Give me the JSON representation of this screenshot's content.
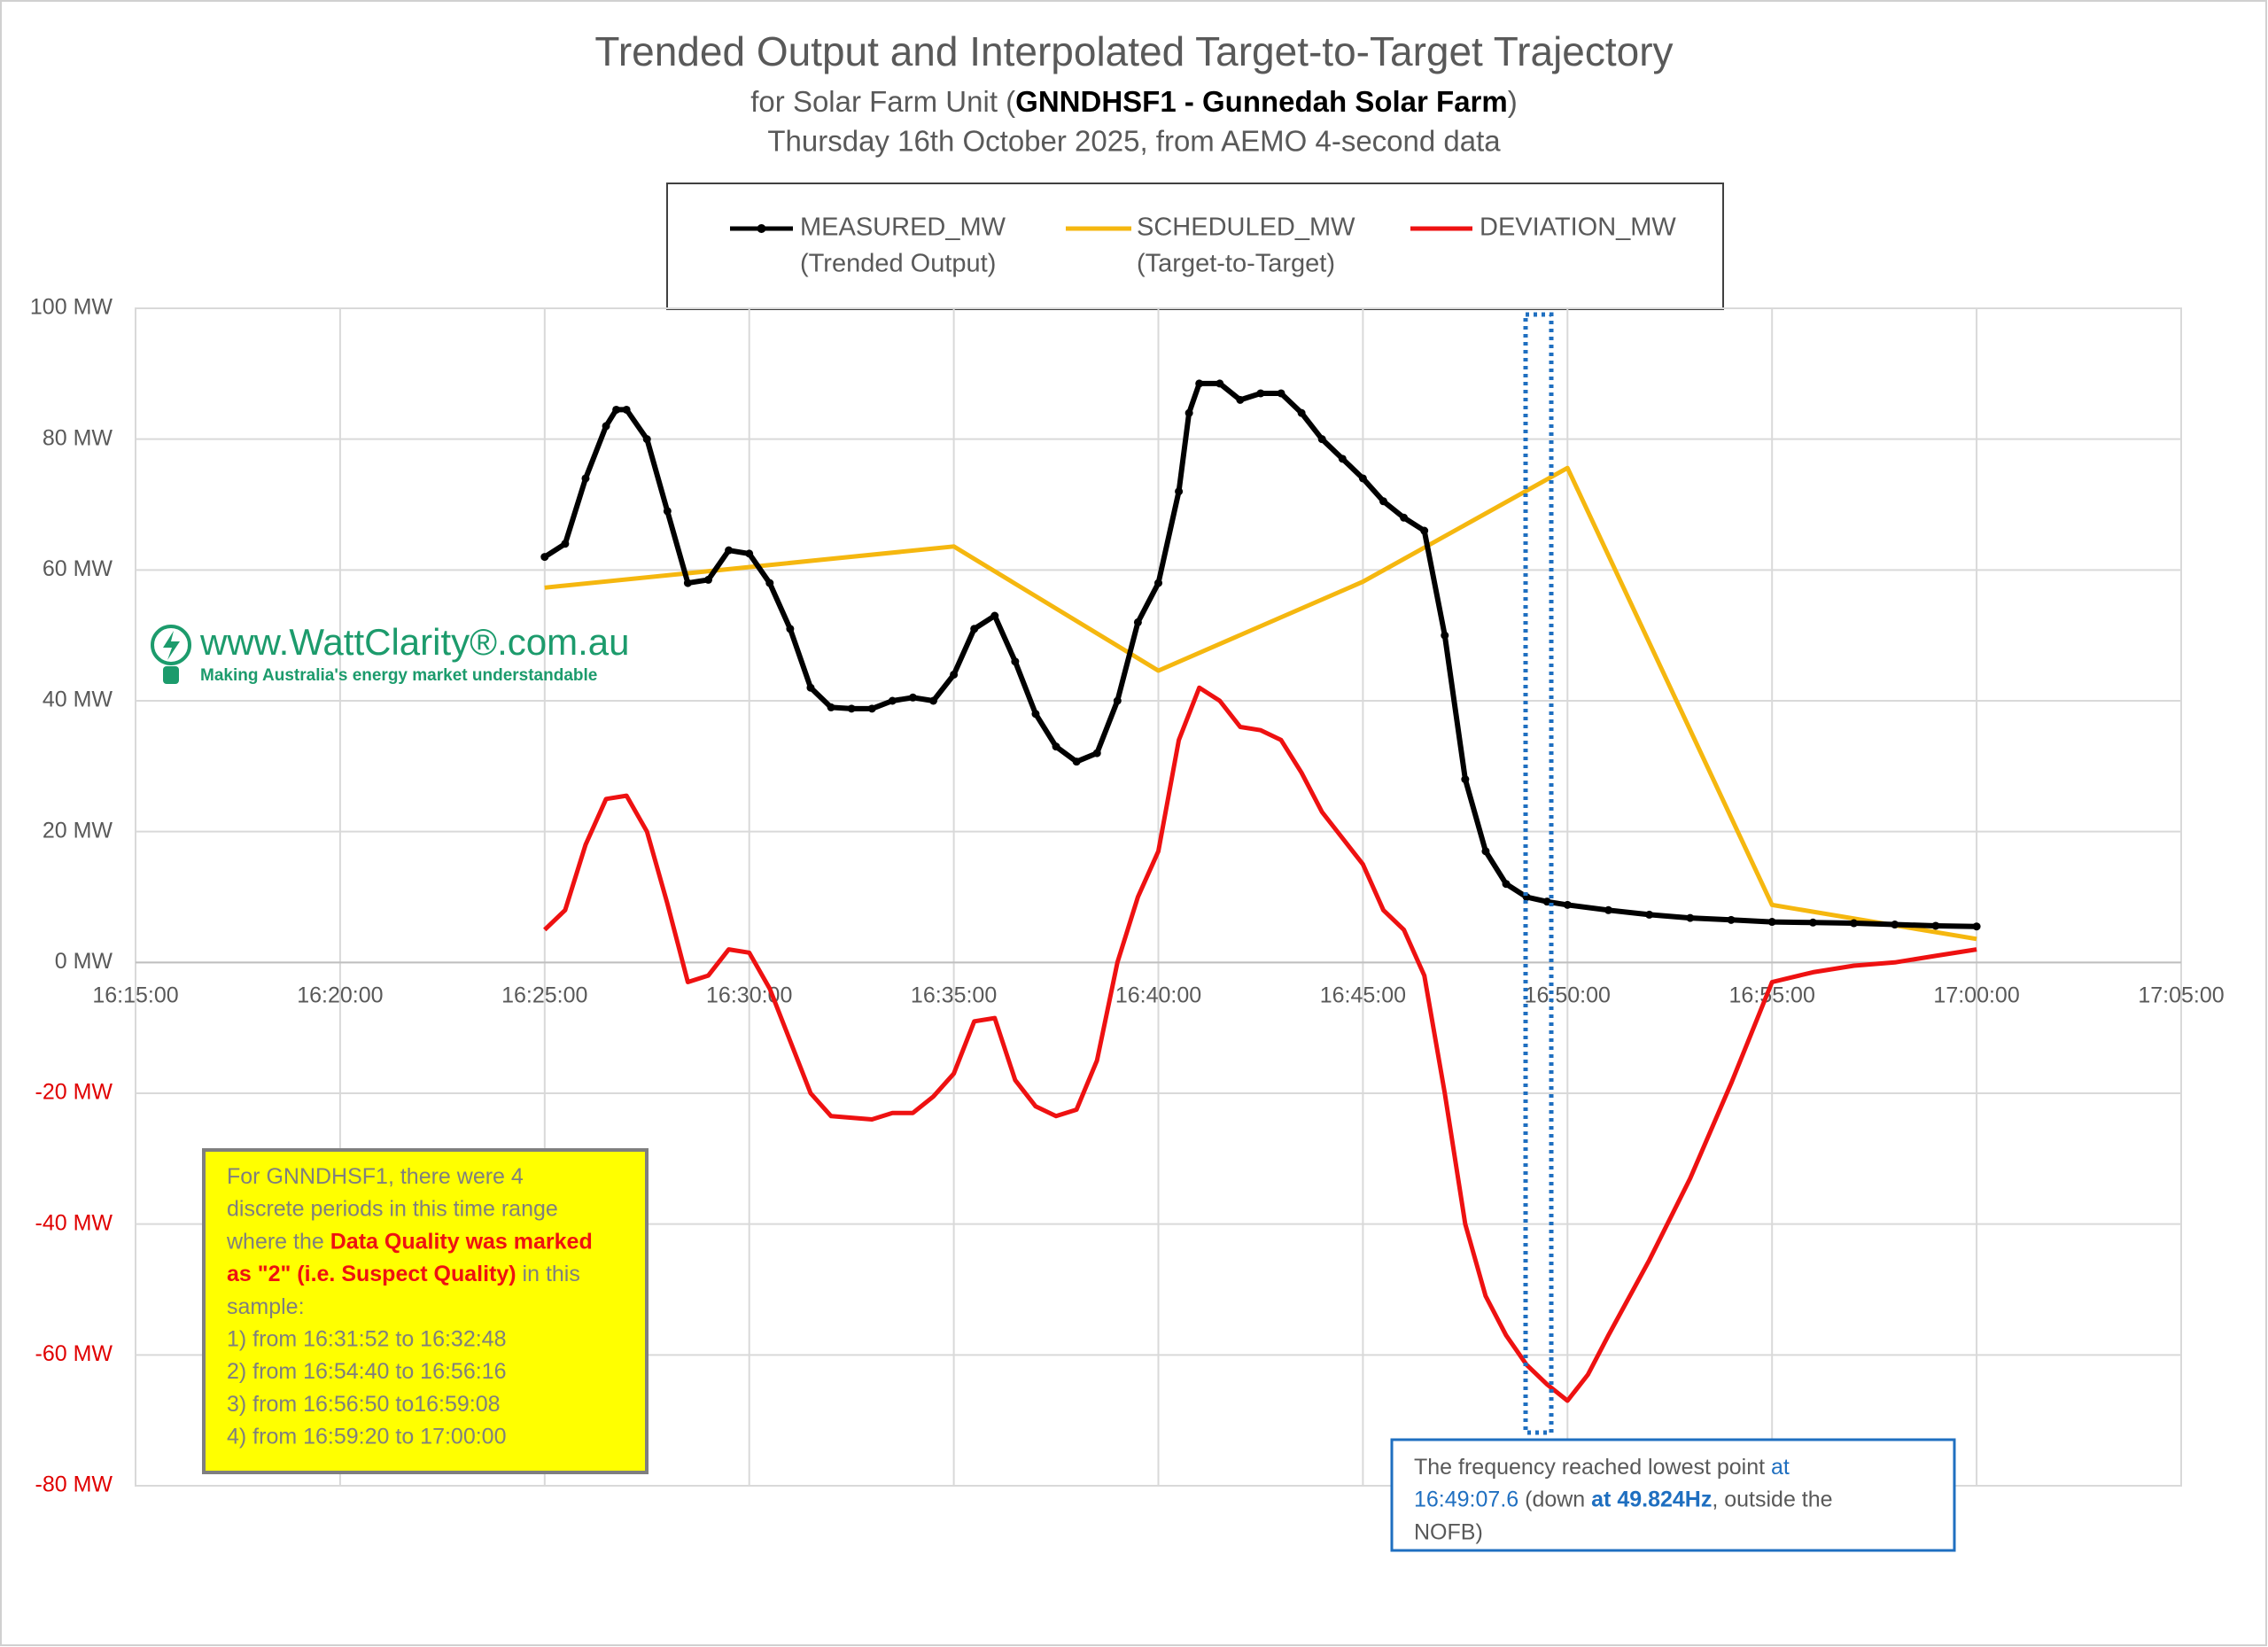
{
  "chart_data": {
    "type": "line",
    "title": "Trended Output and Interpolated Target-to-Target Trajectory",
    "subtitle": {
      "prefix": "for Solar Farm Unit (",
      "bold": "GNNDHSF1 - Gunnedah Solar Farm",
      "suffix": ")"
    },
    "subtitle2": "Thursday 16th October 2025, from AEMO 4-second data",
    "xlim": [
      "16:15:00",
      "17:05:00"
    ],
    "xticks": [
      "16:15:00",
      "16:20:00",
      "16:25:00",
      "16:30:00",
      "16:35:00",
      "16:40:00",
      "16:45:00",
      "16:50:00",
      "16:55:00",
      "17:00:00",
      "17:05:00"
    ],
    "ylim": [
      -80,
      100
    ],
    "yticks": [
      {
        "value": -80,
        "label": "-80 MW"
      },
      {
        "value": -60,
        "label": "-60 MW"
      },
      {
        "value": -40,
        "label": "-40 MW"
      },
      {
        "value": -20,
        "label": "-20 MW"
      },
      {
        "value": 0,
        "label": "0 MW"
      },
      {
        "value": 20,
        "label": "20 MW"
      },
      {
        "value": 40,
        "label": "40 MW"
      },
      {
        "value": 60,
        "label": "60 MW"
      },
      {
        "value": 80,
        "label": "80 MW"
      },
      {
        "value": 100,
        "label": "100 MW"
      }
    ],
    "negative_tick_color": "#e00000",
    "grid": true,
    "legend": "top",
    "series": [
      {
        "name": "MEASURED_MW",
        "description": "(Trended Output)",
        "color": "#000000",
        "markers": true,
        "x": [
          "16:25:00",
          "16:25:30",
          "16:26:00",
          "16:26:30",
          "16:26:45",
          "16:27:00",
          "16:27:30",
          "16:28:00",
          "16:28:30",
          "16:29:00",
          "16:29:30",
          "16:30:00",
          "16:30:30",
          "16:31:00",
          "16:31:30",
          "16:32:00",
          "16:32:30",
          "16:33:00",
          "16:33:30",
          "16:34:00",
          "16:34:30",
          "16:35:00",
          "16:35:30",
          "16:36:00",
          "16:36:30",
          "16:37:00",
          "16:37:30",
          "16:38:00",
          "16:38:30",
          "16:39:00",
          "16:39:30",
          "16:40:00",
          "16:40:30",
          "16:40:45",
          "16:41:00",
          "16:41:30",
          "16:42:00",
          "16:42:30",
          "16:43:00",
          "16:43:30",
          "16:44:00",
          "16:44:30",
          "16:45:00",
          "16:45:30",
          "16:46:00",
          "16:46:30",
          "16:47:00",
          "16:47:30",
          "16:48:00",
          "16:48:30",
          "16:49:00",
          "16:49:30",
          "16:50:00",
          "16:51:00",
          "16:52:00",
          "16:53:00",
          "16:54:00",
          "16:55:00",
          "16:56:00",
          "16:57:00",
          "16:58:00",
          "16:59:00",
          "17:00:00"
        ],
        "values": [
          62,
          64,
          74,
          82,
          84.5,
          84.5,
          80,
          69,
          58,
          58.5,
          63,
          62.5,
          58,
          51,
          42,
          39,
          38.8,
          38.8,
          40,
          40.5,
          40,
          44,
          51,
          53,
          46,
          38,
          33,
          30.7,
          32,
          40,
          52,
          58,
          72,
          84,
          88.5,
          88.5,
          86,
          87,
          87,
          84,
          80,
          77,
          74,
          70.5,
          68,
          66,
          50,
          28,
          17,
          12,
          10,
          9.3,
          8.8,
          8,
          7.3,
          6.8,
          6.5,
          6.2,
          6.1,
          6,
          5.8,
          5.6,
          5.5
        ]
      },
      {
        "name": "SCHEDULED_MW",
        "description": "(Target-to-Target)",
        "color": "#f5b70f",
        "markers": false,
        "x": [
          "16:25:00",
          "16:35:00",
          "16:40:00",
          "16:45:00",
          "16:50:00",
          "16:55:00",
          "17:00:00"
        ],
        "values": [
          57.3,
          63.6,
          44.6,
          58.2,
          75.6,
          8.8,
          3.6
        ]
      },
      {
        "name": "DEVIATION_MW",
        "color": "#ee1111",
        "markers": false,
        "x": [
          "16:25:00",
          "16:25:30",
          "16:26:00",
          "16:26:30",
          "16:27:00",
          "16:27:30",
          "16:28:00",
          "16:28:30",
          "16:29:00",
          "16:29:30",
          "16:30:00",
          "16:30:30",
          "16:31:00",
          "16:31:30",
          "16:32:00",
          "16:33:00",
          "16:33:30",
          "16:34:00",
          "16:34:30",
          "16:35:00",
          "16:35:30",
          "16:36:00",
          "16:36:30",
          "16:37:00",
          "16:37:30",
          "16:38:00",
          "16:38:30",
          "16:39:00",
          "16:39:30",
          "16:40:00",
          "16:40:30",
          "16:41:00",
          "16:41:30",
          "16:42:00",
          "16:42:30",
          "16:43:00",
          "16:43:30",
          "16:44:00",
          "16:44:30",
          "16:45:00",
          "16:45:30",
          "16:46:00",
          "16:46:30",
          "16:47:00",
          "16:47:30",
          "16:48:00",
          "16:48:30",
          "16:49:00",
          "16:49:30",
          "16:50:00",
          "16:50:30",
          "16:51:00",
          "16:52:00",
          "16:53:00",
          "16:54:00",
          "16:55:00",
          "16:56:00",
          "16:57:00",
          "16:58:00",
          "16:59:00",
          "17:00:00"
        ],
        "values": [
          5,
          8,
          18,
          25,
          25.5,
          20,
          9,
          -3,
          -2,
          2,
          1.5,
          -4,
          -12,
          -20,
          -23.5,
          -24,
          -23,
          -23,
          -20.5,
          -17,
          -9,
          -8.5,
          -18,
          -22,
          -23.5,
          -22.5,
          -15,
          0,
          10,
          17,
          34,
          42,
          40,
          36,
          35.5,
          34,
          29,
          23,
          19,
          15,
          8,
          5,
          -2,
          -20,
          -40,
          -51,
          -57,
          -61.5,
          -64.5,
          -67,
          -63,
          -57,
          -45.5,
          -33,
          -18.5,
          -3,
          -1.5,
          -0.5,
          0,
          1,
          2
        ]
      }
    ],
    "logo": {
      "text": "www.WattClarity®.com.au",
      "tagline": "Making Australia's energy market understandable"
    },
    "note_box": {
      "lines": [
        [
          {
            "text": "For GNNDHSF1, there were 4"
          }
        ],
        [
          {
            "text": "discrete periods in this time range"
          }
        ],
        [
          {
            "text": "where the "
          },
          {
            "text": "Data Quality was marked",
            "emphasis": true
          }
        ],
        [
          {
            "text": "as \"2\" (i.e. Suspect Quality)",
            "emphasis": true
          },
          {
            "text": " in this"
          }
        ],
        [
          {
            "text": "sample:"
          }
        ],
        [
          {
            "text": "1) from 16:31:52 to 16:32:48"
          }
        ],
        [
          {
            "text": "2) from 16:54:40 to 16:56:16"
          }
        ],
        [
          {
            "text": "3) from 16:56:50 to16:59:08"
          }
        ],
        [
          {
            "text": "4) from 16:59:20 to 17:00:00"
          }
        ]
      ]
    },
    "frequency_box": {
      "lines": [
        [
          {
            "text": "The frequency reached lowest point "
          },
          {
            "text": "at",
            "emphasis": "blue"
          }
        ],
        [
          {
            "text": "16:49:07.6",
            "emphasis": "blue"
          },
          {
            "text": " (down "
          },
          {
            "text": "at 49.824Hz",
            "emphasis": "bold"
          },
          {
            "text": ", outside the"
          }
        ],
        [
          {
            "text": "NOFB)"
          }
        ]
      ]
    }
  }
}
